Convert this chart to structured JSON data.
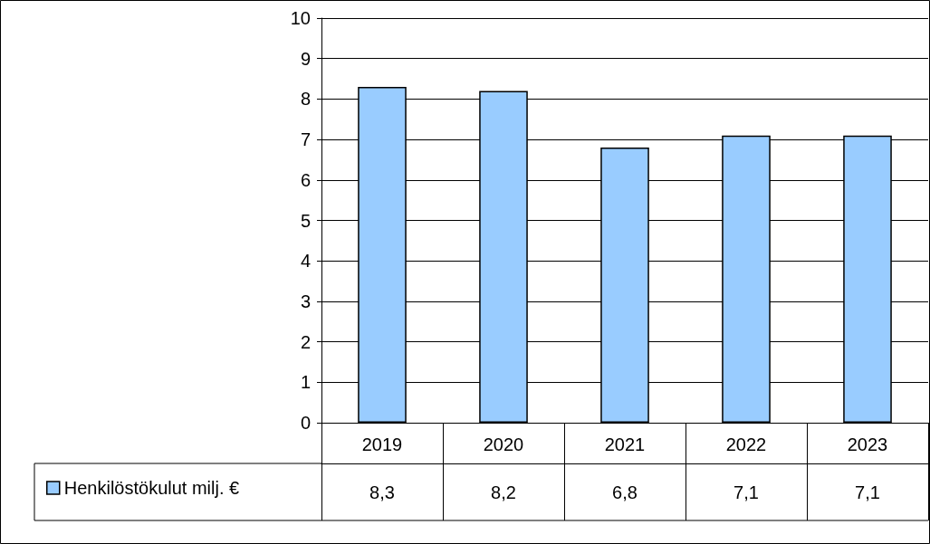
{
  "chart_data": {
    "type": "bar",
    "categories": [
      "2019",
      "2020",
      "2021",
      "2022",
      "2023"
    ],
    "series": [
      {
        "name": "Henkilöstökulut milj. €",
        "color": "#99ccff",
        "values": [
          8.3,
          8.2,
          6.8,
          7.1,
          7.1
        ],
        "value_labels": [
          "8,3",
          "8,2",
          "6,8",
          "7,1",
          "7,1"
        ]
      }
    ],
    "ylim": [
      0,
      10
    ],
    "yticks": [
      0,
      1,
      2,
      3,
      4,
      5,
      6,
      7,
      8,
      9,
      10
    ],
    "grid": "y",
    "legend": "bottom left"
  }
}
